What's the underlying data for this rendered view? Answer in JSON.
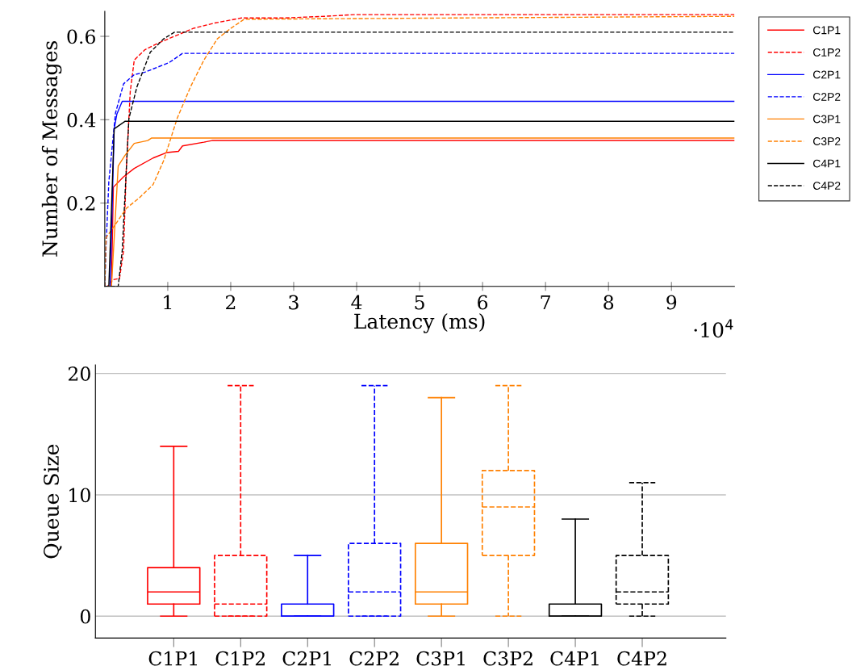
{
  "chart_data": [
    {
      "type": "line",
      "xlabel": "Latency (ms)",
      "ylabel": "Number of Messages",
      "annotations": [
        "·10$^{4}$"
      ],
      "xlim": [
        0,
        10
      ],
      "ylim": [
        0,
        0.66
      ],
      "xticks": [
        1,
        2,
        3,
        4,
        5,
        6,
        7,
        8,
        9
      ],
      "yticks": [
        0.2,
        0.4,
        0.6
      ],
      "grid": false,
      "legend": "right",
      "marker": "none",
      "series": [
        {
          "name": "C1P1",
          "color": "#ff0000",
          "line_style": "solid",
          "x": [
            0,
            0.106,
            0.136,
            0.298,
            0.468,
            0.766,
            0.979,
            1.17,
            1.234,
            1.574,
            1.702,
            10
          ],
          "values": [
            0,
            0,
            0.238,
            0.263,
            0.283,
            0.308,
            0.321,
            0.324,
            0.337,
            0.346,
            0.35,
            0.35
          ]
        },
        {
          "name": "C1P2",
          "color": "#ff0000",
          "line_style": "dashed",
          "x": [
            0,
            0.043,
            0.128,
            0.234,
            0.298,
            0.34,
            0.404,
            0.468,
            0.638,
            0.851,
            1.106,
            1.404,
            1.745,
            2.17,
            2.85,
            3.49,
            3.96,
            10
          ],
          "values": [
            0,
            0,
            0.016,
            0.019,
            0.086,
            0.276,
            0.467,
            0.543,
            0.568,
            0.584,
            0.6,
            0.619,
            0.632,
            0.644,
            0.644,
            0.648,
            0.652,
            0.652
          ]
        },
        {
          "name": "C2P1",
          "color": "#0000ff",
          "line_style": "solid",
          "x": [
            0,
            0.085,
            0.149,
            0.191,
            0.277,
            10
          ],
          "values": [
            0,
            0,
            0.378,
            0.413,
            0.444,
            0.444
          ]
        },
        {
          "name": "C2P2",
          "color": "#0000ff",
          "line_style": "dashed",
          "x": [
            0,
            0.021,
            0.064,
            0.17,
            0.298,
            0.468,
            0.638,
            1.021,
            1.234,
            10
          ],
          "values": [
            0,
            0.098,
            0.251,
            0.416,
            0.486,
            0.508,
            0.514,
            0.537,
            0.559,
            0.559
          ]
        },
        {
          "name": "C3P1",
          "color": "#ff8000",
          "line_style": "solid",
          "x": [
            0,
            0.106,
            0.213,
            0.319,
            0.468,
            0.681,
            0.745,
            10
          ],
          "values": [
            0,
            0,
            0.289,
            0.314,
            0.343,
            0.35,
            0.356,
            0.356
          ]
        },
        {
          "name": "C3P2",
          "color": "#ff8000",
          "line_style": "dashed",
          "x": [
            0,
            0.021,
            0.17,
            0.34,
            0.553,
            0.766,
            0.936,
            1.149,
            1.362,
            1.574,
            1.787,
            2.0,
            2.213,
            10
          ],
          "values": [
            0,
            0.117,
            0.149,
            0.187,
            0.213,
            0.244,
            0.302,
            0.403,
            0.479,
            0.543,
            0.594,
            0.619,
            0.641,
            0.648
          ]
        },
        {
          "name": "C4P1",
          "color": "#000000",
          "line_style": "solid",
          "x": [
            0,
            0.064,
            0.149,
            0.319,
            10
          ],
          "values": [
            0,
            0,
            0.378,
            0.396,
            0.396
          ]
        },
        {
          "name": "C4P2",
          "color": "#000000",
          "line_style": "dashed",
          "x": [
            0,
            0.213,
            0.277,
            0.319,
            0.383,
            0.511,
            0.723,
            0.936,
            1.106,
            10
          ],
          "values": [
            0,
            0,
            0.086,
            0.213,
            0.403,
            0.479,
            0.562,
            0.594,
            0.61,
            0.61
          ]
        }
      ]
    },
    {
      "type": "box",
      "ylabel": "Queue Size",
      "categories": [
        "C1P1",
        "C1P2",
        "C2P1",
        "C2P2",
        "C3P1",
        "C3P2",
        "C4P1",
        "C4P2"
      ],
      "ylim": [
        -1.8,
        20.7
      ],
      "yticks": [
        0,
        10,
        20
      ],
      "grid": "y",
      "series": [
        {
          "line_style": "solid",
          "colors": [
            "#ff0000",
            null,
            "#0000ff",
            null,
            "#ff8000",
            null,
            "#000000",
            null
          ],
          "boxes": [
            {
              "low": 0,
              "q1": 1,
              "median": 2,
              "q3": 4,
              "high": 14
            },
            null,
            {
              "low": 0,
              "q1": 0,
              "median": 0,
              "q3": 1,
              "high": 5
            },
            null,
            {
              "low": 0,
              "q1": 1,
              "median": 2,
              "q3": 6,
              "high": 18
            },
            null,
            {
              "low": 0,
              "q1": 0,
              "median": 0,
              "q3": 1,
              "high": 8
            },
            null
          ]
        },
        {
          "line_style": "dashed",
          "colors": [
            null,
            "#ff0000",
            null,
            "#0000ff",
            null,
            "#ff8000",
            null,
            "#000000"
          ],
          "boxes": [
            null,
            {
              "low": 0,
              "q1": 0,
              "median": 1,
              "q3": 5,
              "high": 19
            },
            null,
            {
              "low": 0,
              "q1": 0,
              "median": 2,
              "q3": 6,
              "high": 19
            },
            null,
            {
              "low": 0,
              "q1": 5,
              "median": 9,
              "q3": 12,
              "high": 19
            },
            null,
            {
              "low": 0,
              "q1": 1,
              "median": 2,
              "q3": 5,
              "high": 11
            }
          ]
        }
      ]
    }
  ]
}
